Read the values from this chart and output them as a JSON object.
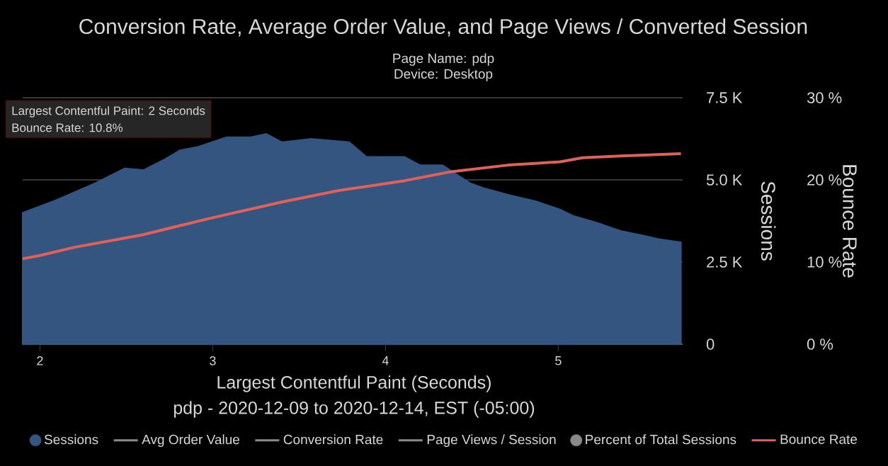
{
  "chart_data": {
    "type": "area",
    "title": "Conversion Rate, Average Order Value, and Page Views / Converted Session",
    "subtitle": "Page Name: pdp",
    "xlabel": "Largest Contentful Paint (Seconds)",
    "ylabel": "Sessions",
    "y2label": "Bounce Rate",
    "annotations": [
      "Largest Contentful Paint: 2 Seconds",
      "Bounce Rate: 10.8%",
      "Device: Desktop",
      "pdp - 2020-12-09 to 2020-12-14, EST (-05:00)"
    ],
    "xlim": [
      1.9,
      5.72
    ],
    "xticks": [
      2,
      3,
      4,
      5
    ],
    "ylim": [
      0,
      7500
    ],
    "yticks": [
      0,
      {
        "value": 2500,
        "label": "2.5 K"
      },
      {
        "value": 5000,
        "label": "5.0 K"
      },
      {
        "value": 7500,
        "label": "7.5 K"
      }
    ],
    "y2lim": [
      0,
      30
    ],
    "y2ticks": [
      {
        "value": 0,
        "label": "0 %"
      },
      {
        "value": 10,
        "label": "10 %"
      },
      {
        "value": 20,
        "label": "20 %"
      },
      {
        "value": 30,
        "label": "30 %"
      }
    ],
    "grid": "y",
    "legend": "bottom",
    "series": [
      {
        "name": "Sessions",
        "color": "#34557f",
        "x": [
          1.9,
          2.1,
          2.32,
          2.49,
          2.6,
          2.73,
          2.81,
          2.91,
          3.08,
          3.22,
          3.31,
          3.4,
          3.57,
          3.79,
          3.89,
          4.11,
          4.2,
          4.33,
          4.49,
          4.57,
          4.71,
          4.87,
          5.01,
          5.09,
          5.22,
          5.36,
          5.5,
          5.58,
          5.71
        ],
        "values": [
          4000,
          4400,
          4900,
          5350,
          5300,
          5650,
          5900,
          6000,
          6300,
          6300,
          6400,
          6150,
          6250,
          6150,
          5700,
          5700,
          5450,
          5450,
          4900,
          4750,
          4550,
          4350,
          4100,
          3900,
          3700,
          3450,
          3300,
          3200,
          3100
        ]
      },
      {
        "name": "Avg Order Value",
        "type": "line",
        "color": "#8a8a8a"
      },
      {
        "name": "Conversion Rate",
        "type": "line",
        "color": "#8a8a8a"
      },
      {
        "name": "Page Views / Session",
        "type": "line",
        "color": "#8a8a8a"
      },
      {
        "name": "Percent of Total Sessions",
        "type": "scatter",
        "color": "#8a8a8a"
      },
      {
        "name": "Bounce Rate",
        "type": "line",
        "axis": "y2",
        "color": "#e0605a",
        "x": [
          1.9,
          2.0,
          2.2,
          2.59,
          3.0,
          3.4,
          3.73,
          4.11,
          4.38,
          4.71,
          5.01,
          5.14,
          5.36,
          5.71
        ],
        "values": [
          10.4,
          10.8,
          11.8,
          13.3,
          15.4,
          17.3,
          18.7,
          19.9,
          21.0,
          21.8,
          22.2,
          22.7,
          22.9,
          23.2
        ]
      }
    ]
  }
}
